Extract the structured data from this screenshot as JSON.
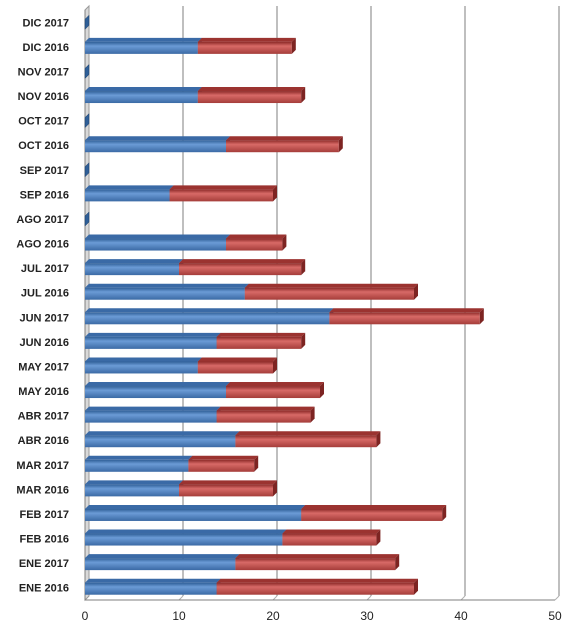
{
  "chart_data": {
    "type": "bar",
    "orientation": "horizontal",
    "stacked": true,
    "categories": [
      "ENE 2016",
      "ENE 2017",
      "FEB 2016",
      "FEB 2017",
      "MAR 2016",
      "MAR 2017",
      "ABR 2016",
      "ABR 2017",
      "MAY 2016",
      "MAY 2017",
      "JUN 2016",
      "JUN 2017",
      "JUL 2016",
      "JUL 2017",
      "AGO 2016",
      "AGO 2017",
      "SEP 2016",
      "SEP 2017",
      "OCT 2016",
      "OCT 2017",
      "NOV 2016",
      "NOV 2017",
      "DIC 2016",
      "DIC 2017"
    ],
    "series": [
      {
        "color": "#4f81bd",
        "values": [
          14,
          16,
          21,
          23,
          10,
          11,
          16,
          14,
          15,
          12,
          14,
          26,
          17,
          10,
          15,
          0,
          9,
          0,
          15,
          0,
          12,
          0,
          12,
          0
        ]
      },
      {
        "color": "#c0504d",
        "values": [
          21,
          17,
          10,
          15,
          10,
          7,
          15,
          10,
          10,
          8,
          9,
          16,
          18,
          13,
          6,
          0,
          11,
          0,
          12,
          0,
          11,
          0,
          10,
          0
        ]
      }
    ],
    "xlim": [
      0,
      50
    ],
    "xticks": [
      "0",
      "10",
      "20",
      "30",
      "40",
      "50"
    ],
    "grid": true
  }
}
